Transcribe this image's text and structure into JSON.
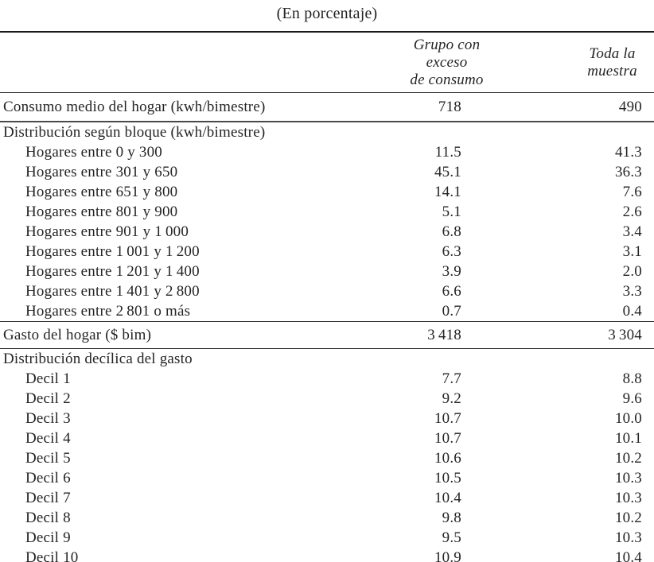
{
  "caption": "(En porcentaje)",
  "columns": {
    "group": {
      "line1": "Grupo con exceso",
      "line2": "de consumo"
    },
    "sample": {
      "line1": "Toda la",
      "line2": "muestra"
    }
  },
  "rows": [
    {
      "label": "Consumo medio del hogar (kwh/bimestre)",
      "group": "718",
      "sample": "490"
    },
    {
      "label": "Distribución según bloque (kwh/bimestre)"
    },
    {
      "label": "Hogares entre 0 y 300",
      "group": "11.5",
      "sample": "41.3"
    },
    {
      "label": "Hogares entre 301 y 650",
      "group": "45.1",
      "sample": "36.3"
    },
    {
      "label": "Hogares entre 651 y 800",
      "group": "14.1",
      "sample": "7.6"
    },
    {
      "label": "Hogares entre 801 y 900",
      "group": "5.1",
      "sample": "2.6"
    },
    {
      "label": "Hogares entre 901 y 1 000",
      "group": "6.8",
      "sample": "3.4"
    },
    {
      "label": "Hogares entre 1 001 y 1 200",
      "group": "6.3",
      "sample": "3.1"
    },
    {
      "label": "Hogares entre 1 201 y 1 400",
      "group": "3.9",
      "sample": "2.0"
    },
    {
      "label": "Hogares entre 1 401 y 2 800",
      "group": "6.6",
      "sample": "3.3"
    },
    {
      "label": "Hogares entre 2 801 o más",
      "group": "0.7",
      "sample": "0.4"
    },
    {
      "label": "Gasto del hogar ($ bim)",
      "group": "3 418",
      "sample": "3 304"
    },
    {
      "label": "Distribución decílica del gasto"
    },
    {
      "label": "Decil 1",
      "group": "7.7",
      "sample": "8.8"
    },
    {
      "label": "Decil 2",
      "group": "9.2",
      "sample": "9.6"
    },
    {
      "label": "Decil 3",
      "group": "10.7",
      "sample": "10.0"
    },
    {
      "label": "Decil 4",
      "group": "10.7",
      "sample": "10.1"
    },
    {
      "label": "Decil 5",
      "group": "10.6",
      "sample": "10.2"
    },
    {
      "label": "Decil 6",
      "group": "10.5",
      "sample": "10.3"
    },
    {
      "label": "Decil 7",
      "group": "10.4",
      "sample": "10.3"
    },
    {
      "label": "Decil 8",
      "group": "9.8",
      "sample": "10.2"
    },
    {
      "label": "Decil 9",
      "group": "9.5",
      "sample": "10.3"
    },
    {
      "label": "Decil 10",
      "group": "10.9",
      "sample": "10.4"
    }
  ],
  "colors": {
    "text": "#242424",
    "rule_heavy": "#1b1b1b",
    "rule_light": "#b3b3b3",
    "background": "#ffffff"
  }
}
